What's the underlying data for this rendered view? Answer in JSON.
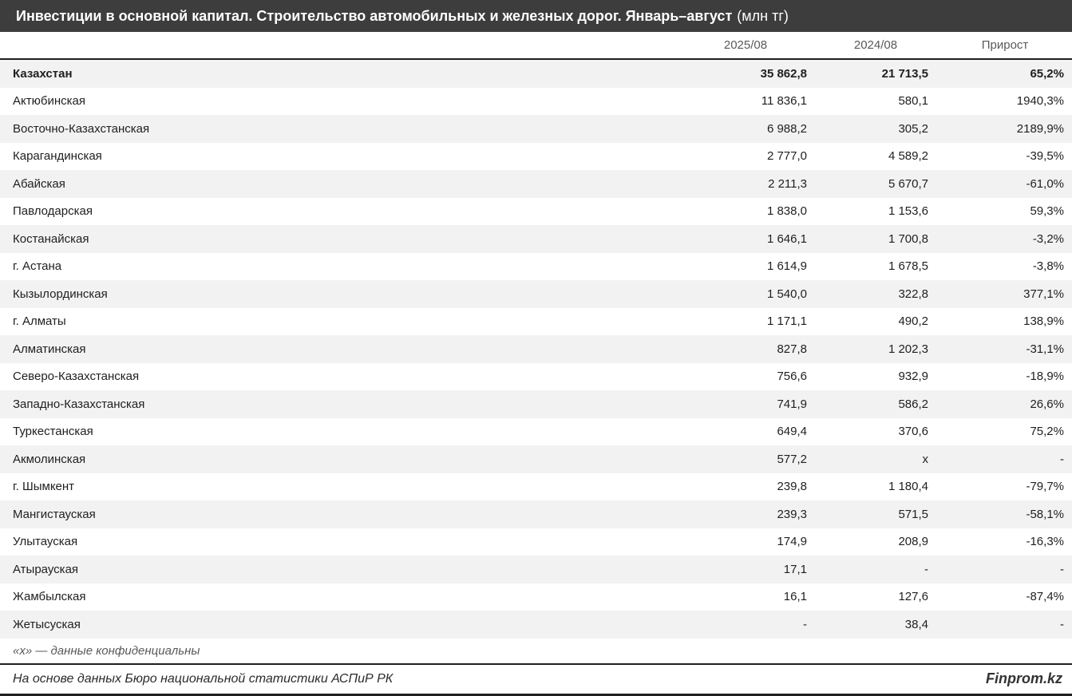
{
  "title": {
    "text": "Инвестиции в основной капитал. Строительство автомобильных и железных дорог. Январь–август",
    "unit": "(млн тг)"
  },
  "columns": [
    "2025/08",
    "2024/08",
    "Прирост"
  ],
  "rows": [
    {
      "region": "Казахстан",
      "bold": true,
      "values": [
        "35 862,8",
        "21 713,5",
        "65,2%"
      ]
    },
    {
      "region": "Актюбинская",
      "bold": false,
      "values": [
        "11 836,1",
        "580,1",
        "1940,3%"
      ]
    },
    {
      "region": "Восточно-Казахстанская",
      "bold": false,
      "values": [
        "6 988,2",
        "305,2",
        "2189,9%"
      ]
    },
    {
      "region": "Карагандинская",
      "bold": false,
      "values": [
        "2 777,0",
        "4 589,2",
        "-39,5%"
      ]
    },
    {
      "region": "Абайская",
      "bold": false,
      "values": [
        "2 211,3",
        "5 670,7",
        "-61,0%"
      ]
    },
    {
      "region": "Павлодарская",
      "bold": false,
      "values": [
        "1 838,0",
        "1 153,6",
        "59,3%"
      ]
    },
    {
      "region": "Костанайская",
      "bold": false,
      "values": [
        "1 646,1",
        "1 700,8",
        "-3,2%"
      ]
    },
    {
      "region": "г. Астана",
      "bold": false,
      "values": [
        "1 614,9",
        "1 678,5",
        "-3,8%"
      ]
    },
    {
      "region": "Кызылординская",
      "bold": false,
      "values": [
        "1 540,0",
        "322,8",
        "377,1%"
      ]
    },
    {
      "region": "г. Алматы",
      "bold": false,
      "values": [
        "1 171,1",
        "490,2",
        "138,9%"
      ]
    },
    {
      "region": "Алматинская",
      "bold": false,
      "values": [
        "827,8",
        "1 202,3",
        "-31,1%"
      ]
    },
    {
      "region": "Северо-Казахстанская",
      "bold": false,
      "values": [
        "756,6",
        "932,9",
        "-18,9%"
      ]
    },
    {
      "region": "Западно-Казахстанская",
      "bold": false,
      "values": [
        "741,9",
        "586,2",
        "26,6%"
      ]
    },
    {
      "region": "Туркестанская",
      "bold": false,
      "values": [
        "649,4",
        "370,6",
        "75,2%"
      ]
    },
    {
      "region": "Акмолинская",
      "bold": false,
      "values": [
        "577,2",
        "х",
        "-"
      ]
    },
    {
      "region": "г. Шымкент",
      "bold": false,
      "values": [
        "239,8",
        "1 180,4",
        "-79,7%"
      ]
    },
    {
      "region": "Мангистауская",
      "bold": false,
      "values": [
        "239,3",
        "571,5",
        "-58,1%"
      ]
    },
    {
      "region": "Улытауская",
      "bold": false,
      "values": [
        "174,9",
        "208,9",
        "-16,3%"
      ]
    },
    {
      "region": "Атырауская",
      "bold": false,
      "values": [
        "17,1",
        "-",
        "-"
      ]
    },
    {
      "region": "Жамбылская",
      "bold": false,
      "values": [
        "16,1",
        "127,6",
        "-87,4%"
      ]
    },
    {
      "region": "Жетысуская",
      "bold": false,
      "values": [
        "-",
        "38,4",
        "-"
      ]
    }
  ],
  "footnote": "«х» — данные конфиденциальны",
  "source": "На основе данных Бюро национальной статистики АСПиР РК",
  "brand": "Finprom.kz",
  "colors": {
    "title_bar_bg": "#3d3d3d",
    "title_bar_text": "#ffffff",
    "band_row_bg": "#f2f2f2",
    "dark_border": "#1f1f1f",
    "muted_text": "#595959",
    "body_text": "#1f1f1f"
  },
  "chart_data": {
    "type": "table",
    "title": "Инвестиции в основной капитал. Строительство автомобильных и железных дорог. Январь–август (млн тг)",
    "columns": [
      "2025/08",
      "2024/08",
      "Прирост"
    ],
    "categories": [
      "Казахстан",
      "Актюбинская",
      "Восточно-Казахстанская",
      "Карагандинская",
      "Абайская",
      "Павлодарская",
      "Костанайская",
      "г. Астана",
      "Кызылординская",
      "г. Алматы",
      "Алматинская",
      "Северо-Казахстанская",
      "Западно-Казахстанская",
      "Туркестанская",
      "Акмолинская",
      "г. Шымкент",
      "Мангистауская",
      "Улытауская",
      "Атырауская",
      "Жамбылская",
      "Жетысуская"
    ],
    "series": [
      {
        "name": "2025/08",
        "values": [
          35862.8,
          11836.1,
          6988.2,
          2777.0,
          2211.3,
          1838.0,
          1646.1,
          1614.9,
          1540.0,
          1171.1,
          827.8,
          756.6,
          741.9,
          649.4,
          577.2,
          239.8,
          239.3,
          174.9,
          17.1,
          16.1,
          null
        ]
      },
      {
        "name": "2024/08",
        "values": [
          21713.5,
          580.1,
          305.2,
          4589.2,
          5670.7,
          1153.6,
          1700.8,
          1678.5,
          322.8,
          490.2,
          1202.3,
          932.9,
          586.2,
          370.6,
          "x",
          1180.4,
          571.5,
          208.9,
          null,
          127.6,
          38.4
        ]
      },
      {
        "name": "Прирост, %",
        "values": [
          65.2,
          1940.3,
          2189.9,
          -39.5,
          -61.0,
          59.3,
          -3.2,
          -3.8,
          377.1,
          138.9,
          -31.1,
          -18.9,
          26.6,
          75.2,
          null,
          -79.7,
          -58.1,
          -16.3,
          null,
          -87.4,
          null
        ]
      }
    ],
    "footnote": "«х» — данные конфиденциальны",
    "source": "На основе данных Бюро национальной статистики АСПиР РК"
  }
}
